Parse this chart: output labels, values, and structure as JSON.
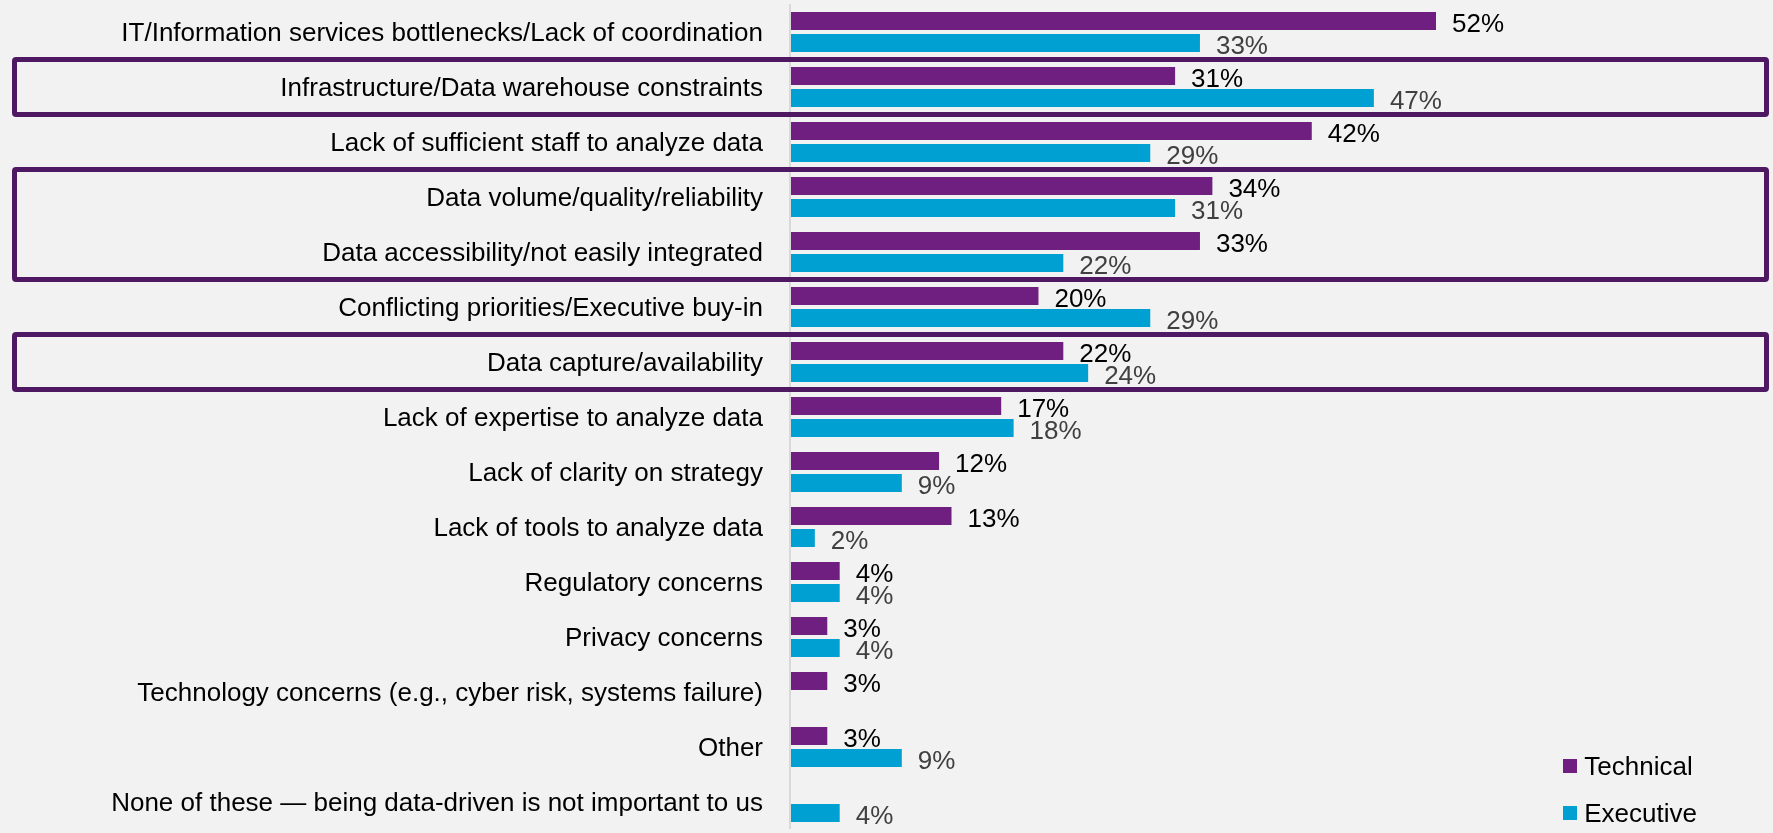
{
  "chart_data": {
    "type": "bar",
    "orientation": "horizontal",
    "tick_labels": "y",
    "legend": "bottom right",
    "categories": [
      "IT/Information services bottlenecks/Lack of coordination",
      "Infrastructure/Data warehouse constraints",
      "Lack of sufficient staff to analyze data",
      "Data volume/quality/reliability",
      "Data accessibility/not easily integrated",
      "Conflicting priorities/Executive buy-in",
      "Data capture/availability",
      "Lack of expertise to analyze data",
      "Lack of clarity on strategy",
      "Lack of tools to analyze data",
      "Regulatory concerns",
      "Privacy concerns",
      "Technology concerns (e.g., cyber risk, systems failure)",
      "Other",
      "None of these — being data-driven is not important to us"
    ],
    "series": [
      {
        "name": "Technical",
        "color": "#6e1f7f",
        "values": [
          52,
          31,
          42,
          34,
          33,
          20,
          22,
          17,
          12,
          13,
          4,
          3,
          3,
          3,
          null
        ],
        "value_labels": [
          "52%",
          "31%",
          "42%",
          "34%",
          "33%",
          "20%",
          "22%",
          "17%",
          "12%",
          "13%",
          "4%",
          "3%",
          "3%",
          "3%",
          null
        ]
      },
      {
        "name": "Executive",
        "color": "#00a0d2",
        "values": [
          33,
          47,
          29,
          31,
          22,
          29,
          24,
          18,
          9,
          2,
          4,
          4,
          null,
          9,
          4
        ],
        "value_labels": [
          "33%",
          "47%",
          "29%",
          "31%",
          "22%",
          "29%",
          "24%",
          "18%",
          "9%",
          "2%",
          "4%",
          "4%",
          null,
          "9%",
          "4%"
        ]
      }
    ]
  }
}
